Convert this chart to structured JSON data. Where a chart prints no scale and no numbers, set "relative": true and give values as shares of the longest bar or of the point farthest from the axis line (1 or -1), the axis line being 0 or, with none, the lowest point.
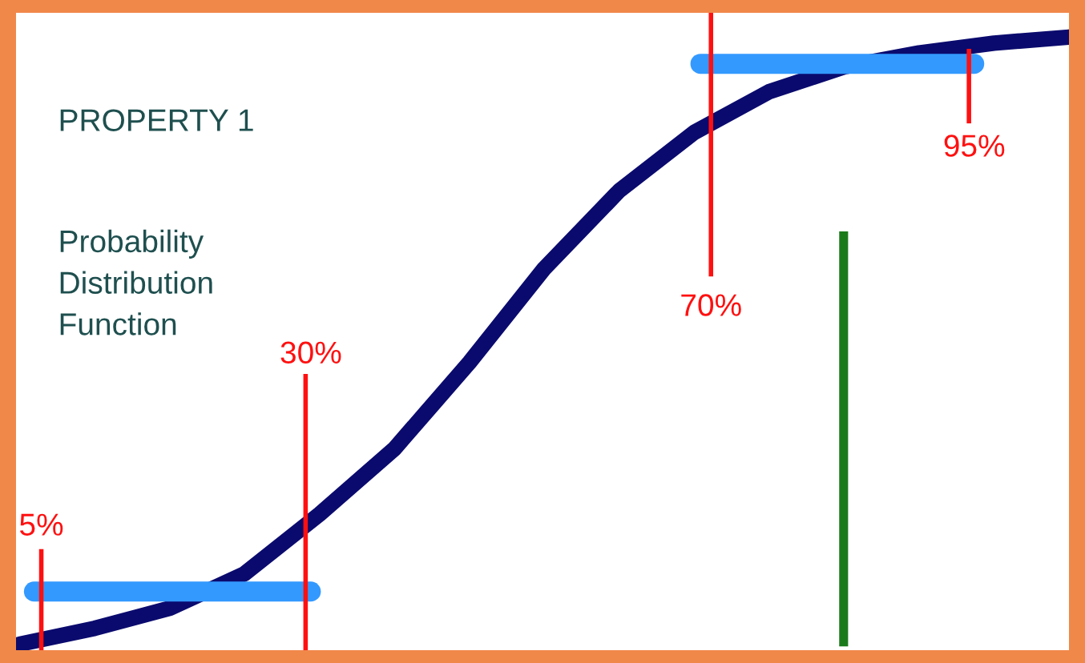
{
  "chart_data": {
    "type": "line",
    "relative": true,
    "tick_labels": false,
    "annotations": [
      "PROPERTY 1",
      "Probability\nDistribution\nFunction",
      "5%",
      "30%",
      "70%",
      "95%"
    ],
    "categories": [
      null,
      null,
      null,
      null,
      null,
      null,
      null,
      null,
      null,
      null,
      null,
      null,
      null,
      null,
      null
    ],
    "series": [
      {
        "color": "#0a0a6e",
        "values": [
          0,
          0.026,
          0.059,
          0.116,
          0.214,
          0.322,
          0.464,
          0.619,
          0.747,
          0.843,
          0.91,
          0.951,
          0.974,
          0.99,
          1.0
        ]
      }
    ]
  }
}
